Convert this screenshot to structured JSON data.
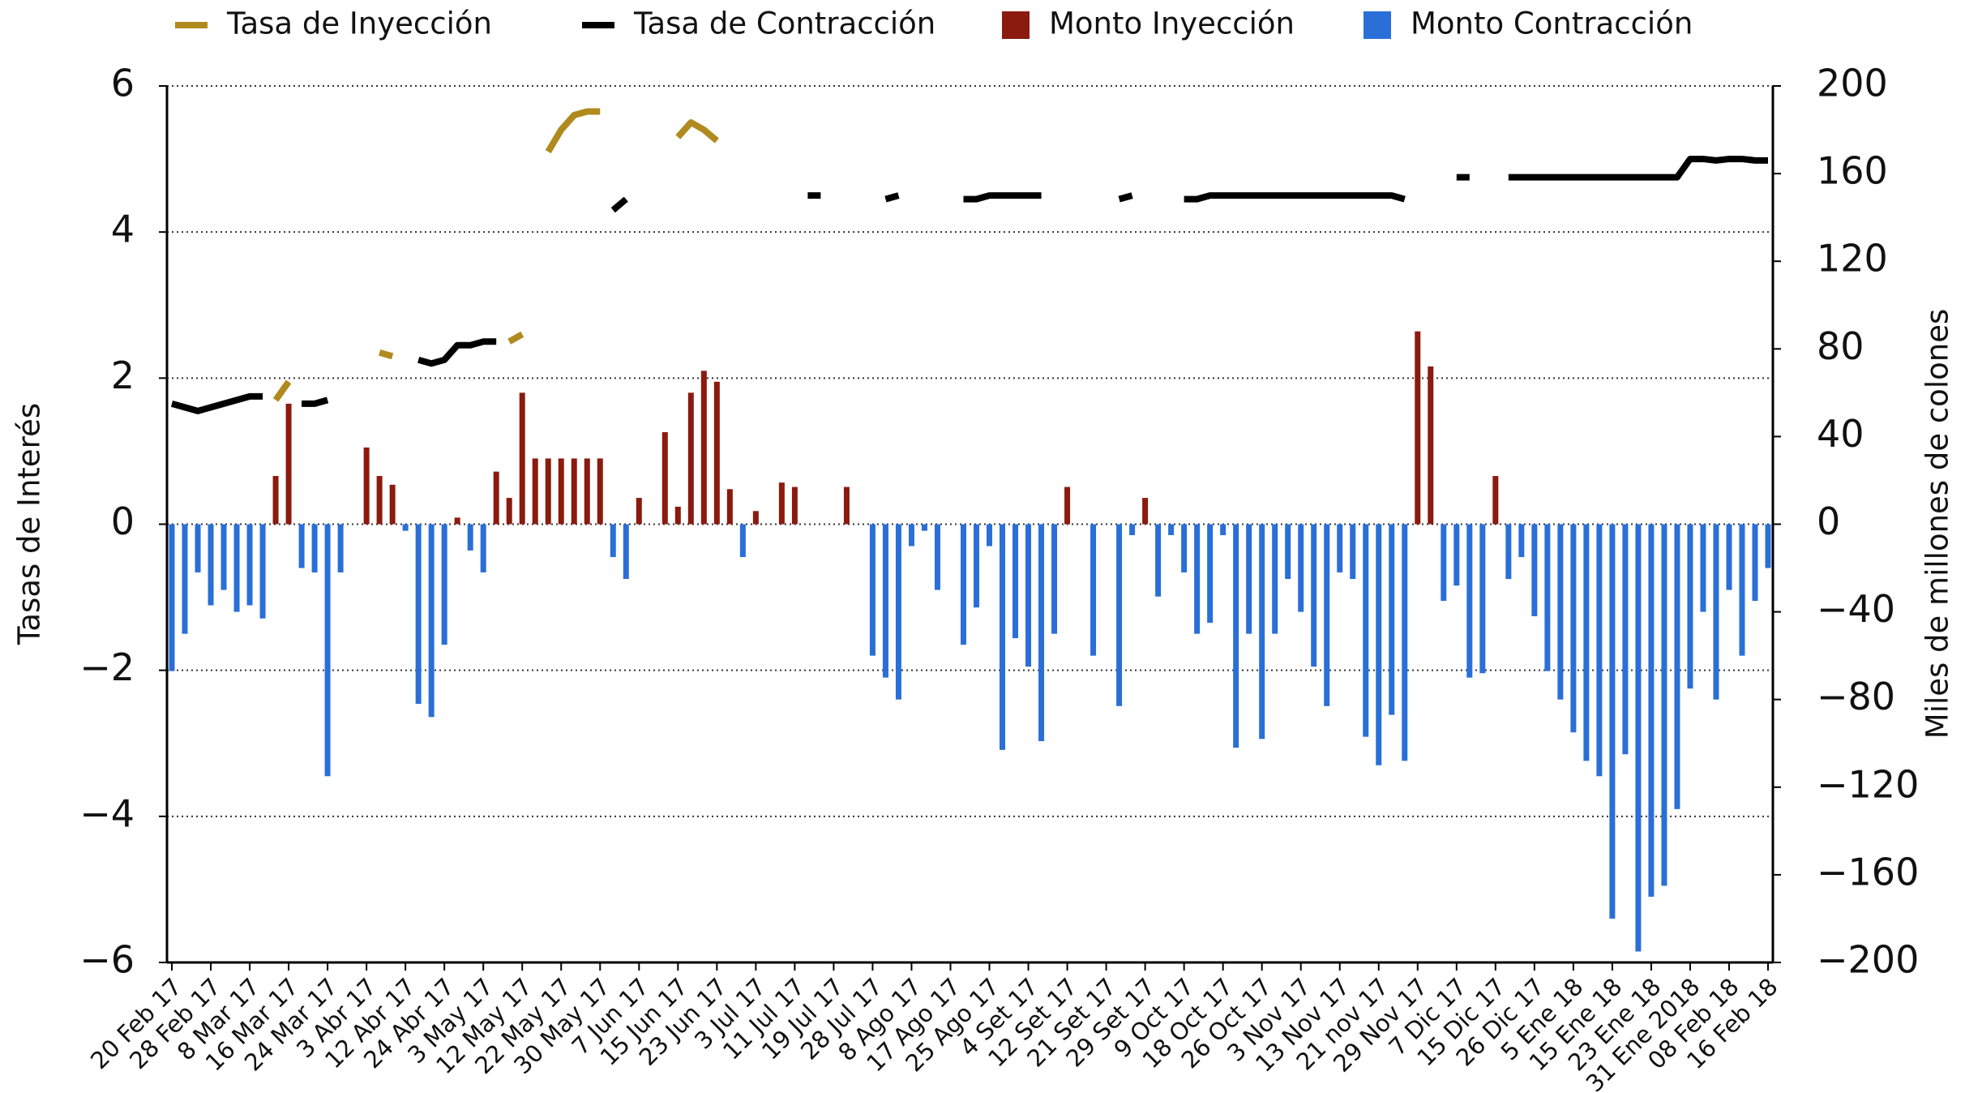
{
  "chart_data": {
    "type": "combo",
    "y_label": "Tasas de Interés",
    "y2_label": "Miles de millones de colones",
    "ylim": [
      -6,
      6
    ],
    "yticks": [
      {
        "value": -6,
        "label": "−6"
      },
      {
        "value": -4,
        "label": "−4"
      },
      {
        "value": -2,
        "label": "−2"
      },
      0,
      2,
      4,
      6
    ],
    "y2lim": [
      -200,
      200
    ],
    "y2ticks": [
      {
        "value": -200,
        "label": "−200"
      },
      {
        "value": -160,
        "label": "−160"
      },
      {
        "value": -120,
        "label": "−120"
      },
      {
        "value": -80,
        "label": "−80"
      },
      {
        "value": -40,
        "label": "−40"
      },
      0,
      40,
      80,
      120,
      160,
      200
    ],
    "grid": true,
    "legend": "top",
    "categories": [
      "20 Feb 17",
      null,
      null,
      "28 Feb 17",
      null,
      null,
      "8 Mar 17",
      null,
      null,
      "16 Mar 17",
      null,
      null,
      "24 Mar 17",
      null,
      null,
      "3 Abr 17",
      null,
      null,
      "12 Abr 17",
      null,
      null,
      "24 Abr 17",
      null,
      null,
      "3 May 17",
      null,
      null,
      "12 May 17",
      null,
      null,
      "22 May 17",
      null,
      null,
      "30 May 17",
      null,
      null,
      "7 Jun 17",
      null,
      null,
      "15 Jun 17",
      null,
      null,
      "23 Jun 17",
      null,
      null,
      "3 Jul 17",
      null,
      null,
      "11 Jul 17",
      null,
      null,
      "19 Jul 17",
      null,
      null,
      "28 Jul 17",
      null,
      null,
      "8 Ago 17",
      null,
      null,
      "17 Ago 17",
      null,
      null,
      "25 Ago 17",
      null,
      null,
      "4 Set 17",
      null,
      null,
      "12 Set 17",
      null,
      null,
      "21 Set 17",
      null,
      null,
      "29 Set 17",
      null,
      null,
      "9 Oct 17",
      null,
      null,
      "18 Oct 17",
      null,
      null,
      "26 Oct 17",
      null,
      null,
      "3 Nov 17",
      null,
      null,
      "13 Nov 17",
      null,
      null,
      "21 nov 17",
      null,
      null,
      "29 Nov 17",
      null,
      null,
      "7 Dic 17",
      null,
      null,
      "15 Dic 17",
      null,
      null,
      "26 Dic 17",
      null,
      null,
      "5 Ene 18",
      null,
      null,
      "15 Ene 18",
      null,
      null,
      "23 Ene 18",
      null,
      null,
      "31 Ene 2018",
      null,
      null,
      "08 Feb 18",
      null,
      null,
      "16 Feb 18"
    ],
    "series": [
      {
        "name": "Tasa de Inyección",
        "type": "line",
        "color": "#b08a1e",
        "values": [
          null,
          null,
          null,
          null,
          null,
          null,
          null,
          null,
          1.7,
          1.95,
          null,
          null,
          null,
          null,
          null,
          null,
          2.35,
          2.3,
          null,
          null,
          null,
          null,
          null,
          null,
          null,
          null,
          2.5,
          2.6,
          null,
          5.1,
          5.4,
          5.6,
          5.65,
          5.65,
          null,
          null,
          null,
          null,
          null,
          5.3,
          5.5,
          5.4,
          5.25,
          null,
          null,
          null,
          null,
          null,
          null,
          null,
          null,
          null,
          null,
          null,
          null,
          null,
          null,
          null,
          null,
          null,
          null,
          null,
          null,
          null,
          null,
          null,
          null,
          null,
          null,
          null,
          null,
          null,
          null,
          null,
          null,
          null,
          null,
          null,
          null,
          null,
          null,
          null,
          null,
          null,
          null,
          null,
          null,
          null,
          null,
          null,
          null,
          null,
          null,
          null,
          null,
          null,
          null,
          null,
          null,
          null,
          null,
          null,
          null,
          null,
          null,
          null,
          null,
          null,
          null,
          null,
          null,
          null,
          null,
          null,
          null,
          null,
          null,
          null,
          null,
          null,
          null,
          null,
          null,
          null
        ]
      },
      {
        "name": "Tasa de Contracción",
        "type": "line",
        "color": "#000000",
        "values": [
          1.65,
          1.6,
          1.55,
          1.6,
          1.65,
          1.7,
          1.75,
          1.75,
          null,
          null,
          1.65,
          1.65,
          1.7,
          null,
          null,
          null,
          null,
          null,
          null,
          2.25,
          2.2,
          2.25,
          2.45,
          2.45,
          2.5,
          2.5,
          null,
          null,
          null,
          null,
          null,
          null,
          null,
          null,
          4.3,
          4.45,
          null,
          null,
          null,
          null,
          null,
          null,
          null,
          null,
          null,
          null,
          null,
          null,
          null,
          4.5,
          4.5,
          null,
          null,
          null,
          null,
          4.45,
          4.5,
          null,
          null,
          null,
          null,
          4.45,
          4.45,
          4.5,
          4.5,
          4.5,
          4.5,
          4.5,
          null,
          null,
          null,
          null,
          null,
          4.45,
          4.5,
          null,
          null,
          null,
          4.45,
          4.45,
          4.5,
          4.5,
          4.5,
          4.5,
          4.5,
          4.5,
          4.5,
          4.5,
          4.5,
          4.5,
          4.5,
          4.5,
          4.5,
          4.5,
          4.5,
          4.45,
          null,
          null,
          null,
          4.75,
          4.75,
          null,
          null,
          4.75,
          4.75,
          4.75,
          4.75,
          4.75,
          4.75,
          4.75,
          4.75,
          4.75,
          4.75,
          4.75,
          4.75,
          4.75,
          4.75,
          5.0,
          5.0,
          4.98,
          5.0,
          5.0,
          4.98,
          4.98
        ]
      },
      {
        "name": "Monto Inyección",
        "type": "bar",
        "axis": "y2",
        "color": "#8b1a0f",
        "values": [
          null,
          null,
          null,
          null,
          null,
          null,
          null,
          null,
          22,
          55,
          null,
          null,
          null,
          null,
          null,
          35,
          22,
          18,
          null,
          null,
          null,
          null,
          3,
          null,
          null,
          24,
          12,
          60,
          30,
          30,
          30,
          30,
          30,
          30,
          null,
          null,
          12,
          null,
          42,
          8,
          60,
          70,
          65,
          16,
          null,
          6,
          null,
          19,
          17,
          null,
          null,
          null,
          17,
          null,
          null,
          null,
          null,
          null,
          null,
          null,
          null,
          null,
          null,
          null,
          null,
          null,
          null,
          null,
          null,
          17,
          null,
          null,
          null,
          null,
          null,
          12,
          null,
          null,
          null,
          null,
          null,
          null,
          null,
          null,
          null,
          null,
          null,
          null,
          null,
          null,
          null,
          null,
          null,
          null,
          null,
          null,
          88,
          72,
          null,
          null,
          null,
          null,
          22,
          null,
          null,
          null,
          null,
          null,
          null,
          null,
          null,
          null,
          null,
          null,
          null,
          null,
          null,
          null,
          null,
          null,
          null,
          null,
          null,
          null
        ]
      },
      {
        "name": "Monto Contracción",
        "type": "bar",
        "axis": "y2",
        "color": "#2a6fd8",
        "values": [
          -67,
          -50,
          -22,
          -37,
          -30,
          -40,
          -37,
          -43,
          null,
          null,
          -20,
          -22,
          -115,
          -22,
          null,
          null,
          null,
          null,
          -3,
          -82,
          -88,
          -55,
          null,
          -12,
          -22,
          null,
          null,
          null,
          null,
          null,
          null,
          null,
          null,
          null,
          -15,
          -25,
          null,
          null,
          null,
          null,
          null,
          null,
          null,
          null,
          -15,
          null,
          null,
          null,
          null,
          null,
          null,
          null,
          null,
          null,
          -60,
          -70,
          -80,
          -10,
          -3,
          -30,
          null,
          -55,
          -38,
          -10,
          -103,
          -52,
          -65,
          -99,
          -50,
          null,
          null,
          -60,
          null,
          -83,
          -5,
          null,
          -33,
          -5,
          -22,
          -50,
          -45,
          -5,
          -102,
          -50,
          -98,
          -50,
          -25,
          -40,
          -65,
          -83,
          -22,
          -25,
          -97,
          -110,
          -87,
          -108,
          null,
          null,
          -35,
          -28,
          -70,
          -68,
          null,
          -25,
          -15,
          -42,
          -67,
          -80,
          -95,
          -108,
          -115,
          -180,
          -105,
          -195,
          -170,
          -165,
          -130,
          -75,
          -40,
          -80,
          -30,
          -60,
          -35,
          -20
        ]
      }
    ]
  }
}
